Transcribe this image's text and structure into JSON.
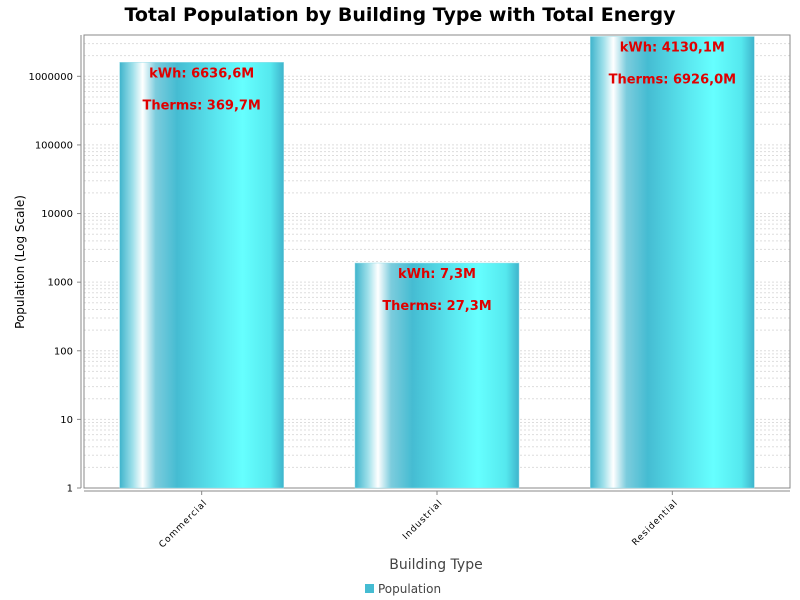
{
  "chart_data": {
    "type": "bar",
    "title": "Total Population by Building Type with Total Energy",
    "xlabel": "Building Type",
    "ylabel": "Population (Log Scale)",
    "yscale": "log",
    "ylim": [
      1,
      4000000
    ],
    "yticks": [
      "1",
      "10",
      "100",
      "1000",
      "10000",
      "100000",
      "1000000"
    ],
    "categories": [
      "Commercial",
      "Industrial",
      "Residential"
    ],
    "series": [
      {
        "name": "Population",
        "values": [
          1600000,
          1900,
          3800000
        ]
      }
    ],
    "annotations": [
      {
        "kwh": "kWh: 6636,6M",
        "therms": "Therms: 369,7M"
      },
      {
        "kwh": "kWh: 7,3M",
        "therms": "Therms: 27,3M"
      },
      {
        "kwh": "kWh: 4130,1M",
        "therms": "Therms: 6926,0M"
      }
    ],
    "grid": true,
    "legend_position": "bottom",
    "colors": {
      "bar": "#45BCD2",
      "bar_light": "#66FFFF",
      "annotation": "#E00000",
      "grid": "#DDDDDD"
    }
  }
}
